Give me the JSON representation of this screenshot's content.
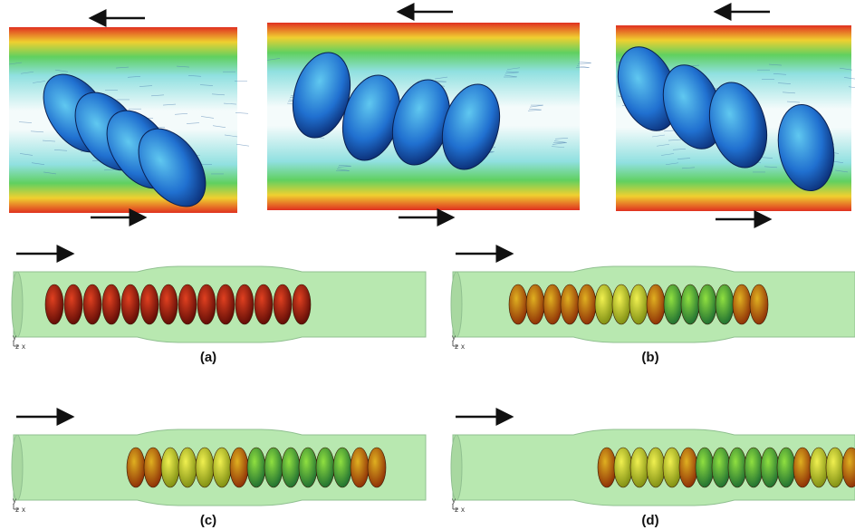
{
  "panels": [
    {
      "label": "(a)",
      "axes": {
        "y": "y",
        "z": "z",
        "x": "x"
      }
    },
    {
      "label": "(b)",
      "axes": {
        "y": "y",
        "z": "z",
        "x": "x"
      }
    },
    {
      "label": "(c)",
      "axes": {
        "y": "y",
        "z": "z",
        "x": "x"
      }
    },
    {
      "label": "(d)",
      "axes": {
        "y": "y",
        "z": "z",
        "x": "x"
      }
    }
  ]
}
